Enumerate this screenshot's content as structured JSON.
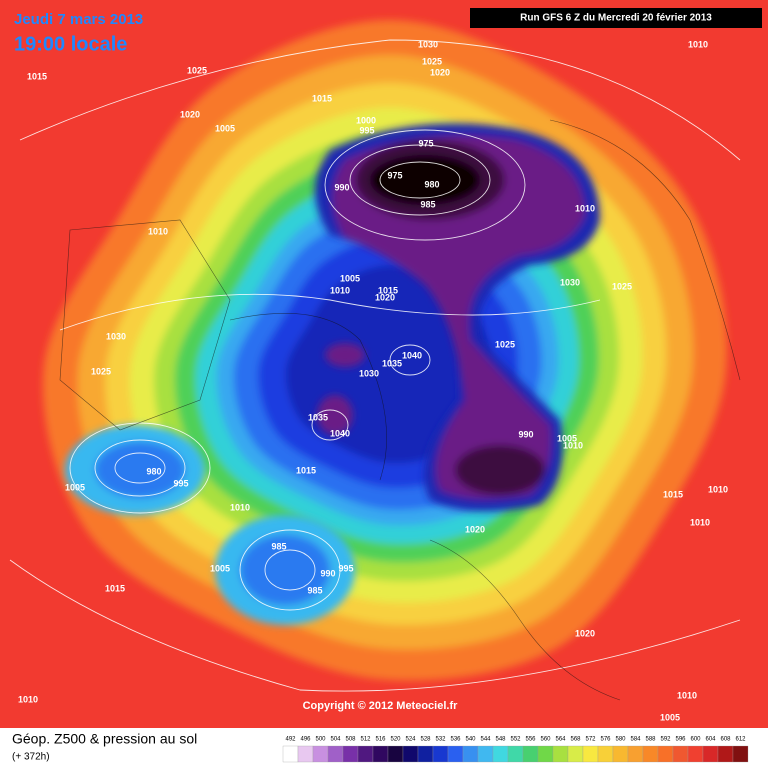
{
  "header": {
    "date": "Jeudi 7 mars 2013",
    "time": "19:00 locale",
    "run": "Run GFS 6 Z du Mercredi 20 février 2013"
  },
  "map": {
    "copyright": "Copyright © 2012 Meteociel.fr",
    "isobar_labels": [
      "1030",
      "1025",
      "1020",
      "1010",
      "1015",
      "1025",
      "1020",
      "1005",
      "1015",
      "1000",
      "995",
      "975",
      "975",
      "980",
      "990",
      "985",
      "1010",
      "1010",
      "1005",
      "1010",
      "1015",
      "1020",
      "1030",
      "1025",
      "1030",
      "1025",
      "1025",
      "1040",
      "1035",
      "1030",
      "1035",
      "1040",
      "990",
      "1005",
      "1010",
      "980",
      "995",
      "1005",
      "1015",
      "1010",
      "1020",
      "1015",
      "1010",
      "1010",
      "985",
      "1005",
      "990",
      "995",
      "985",
      "1015",
      "1020",
      "1010",
      "1005",
      "1010"
    ]
  },
  "footer": {
    "title": "Géop. Z500 & pression au sol",
    "lead": "(+ 372h)",
    "scale": [
      "492",
      "496",
      "500",
      "504",
      "508",
      "512",
      "516",
      "520",
      "524",
      "528",
      "532",
      "536",
      "540",
      "544",
      "548",
      "552",
      "556",
      "560",
      "564",
      "568",
      "572",
      "576",
      "580",
      "584",
      "588",
      "592",
      "596",
      "600",
      "604",
      "608",
      "612"
    ]
  }
}
